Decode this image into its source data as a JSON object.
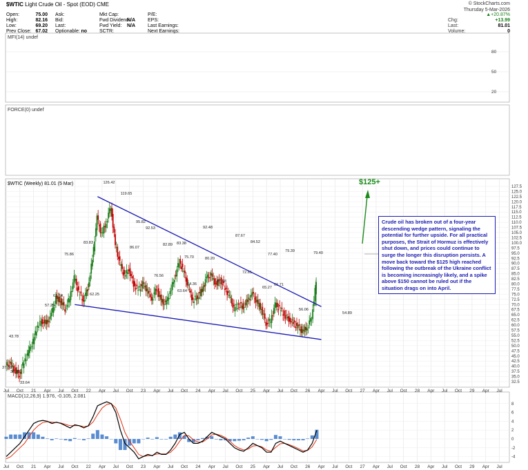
{
  "header": {
    "symbol": "$WTIC",
    "name": "Light Crude Oil - Spot (EOD) CME",
    "watermark": "© StockCharts.com",
    "date": "Thursday 5-Mar-2026",
    "col1": [
      {
        "k": "Open:",
        "v": "75.00"
      },
      {
        "k": "High:",
        "v": "82.16"
      },
      {
        "k": "Low:",
        "v": "69.20"
      },
      {
        "k": "Prev Close:",
        "v": "67.02"
      }
    ],
    "col2": [
      {
        "k": "Ask:",
        "v": ""
      },
      {
        "k": "Bid:",
        "v": ""
      },
      {
        "k": "Last:",
        "v": ""
      },
      {
        "k": "Optionable:",
        "v": "no"
      }
    ],
    "col3": [
      {
        "k": "Mkt Cap:",
        "v": ""
      },
      {
        "k": "Fwd Dividend",
        "v": "N/A"
      },
      {
        "k": "Fwd Yield:",
        "v": "N/A"
      },
      {
        "k": "SCTR:",
        "v": ""
      }
    ],
    "col4": [
      {
        "k": "P/E:",
        "v": ""
      },
      {
        "k": "EPS:",
        "v": ""
      },
      {
        "k": "Last Earnings:",
        "v": ""
      },
      {
        "k": "Next Earnings:",
        "v": ""
      }
    ],
    "quote": {
      "pct": "+20.87%",
      "chg_label": "Chg:",
      "chg": "+13.99",
      "last_label": "Last:",
      "last": "81.01",
      "vol_label": "Volume:",
      "vol": "0"
    }
  },
  "panels": {
    "mfi_label": "MFI(14) undef",
    "mfi_ticks": [
      "80",
      "50",
      "20"
    ],
    "force_label": "FORCE(0) undef",
    "main_label": "$WTIC (Weekly) 81.01 (5 Mar)",
    "macd_label": "MACD(12,26,9) 1.976, -0.105, 2.081",
    "macd_ticks": [
      "8",
      "6",
      "4",
      "2",
      "0",
      "-2",
      "-4"
    ]
  },
  "annotation": {
    "target": "$125+",
    "note": "Crude oil has broken out of a four-year descending wedge pattern, signaling the potential for further upside. For all practical purposes, the Strait of Hormuz is effectively shut down, and prices could continue to surge the longer this disruption persists. A move back toward the $125 high reached following the outbreak of the Ukraine conflict is becoming increasingly likely, and a spike above $150 cannot be ruled out if the situation drags on into April."
  },
  "colors": {
    "up": "#1a7d1a",
    "down": "#c00000",
    "trendline": "#1a1ab0",
    "macd": "#000000",
    "signal": "#e03010",
    "histogram": "#3c78c8",
    "annotation": "#1a8a1a"
  },
  "chart_data": [
    {
      "type": "line",
      "title": "$WTIC (Weekly) 81.01 (5 Mar)",
      "y_ticks": [
        "127.5",
        "125.0",
        "122.5",
        "120.0",
        "117.5",
        "115.0",
        "112.5",
        "110.0",
        "107.5",
        "105.0",
        "102.5",
        "100.0",
        "97.5",
        "95.0",
        "92.5",
        "90.0",
        "87.5",
        "85.0",
        "82.5",
        "80.0",
        "77.5",
        "75.0",
        "72.5",
        "70.0",
        "67.5",
        "65.0",
        "62.5",
        "60.0",
        "57.5",
        "55.0",
        "52.5",
        "50.0",
        "47.5",
        "45.0",
        "42.5",
        "40.0",
        "37.5",
        "35.0",
        "32.5"
      ],
      "x_labels": [
        "Jul",
        "Oct",
        "21",
        "Apr",
        "Jul",
        "Oct",
        "22",
        "Apr",
        "Jul",
        "Oct",
        "23",
        "Apr",
        "Jul",
        "Oct",
        "24",
        "Apr",
        "Jul",
        "Oct",
        "25",
        "Apr",
        "Jul",
        "Oct",
        "26",
        "Apr",
        "Jul",
        "Oct",
        "27",
        "Apr",
        "Jul",
        "Oct",
        "28",
        "Apr",
        "Jul",
        "Oct",
        "29",
        "Apr",
        "Jul"
      ],
      "ylim": [
        32.5,
        127.5
      ],
      "x": [
        "2020-07",
        "2020-08",
        "2020-09",
        "2020-10",
        "2020-11",
        "2020-12",
        "2021-01",
        "2021-02",
        "2021-03",
        "2021-04",
        "2021-05",
        "2021-06",
        "2021-07",
        "2021-08",
        "2021-09",
        "2021-10",
        "2021-11",
        "2021-12",
        "2022-01",
        "2022-02",
        "2022-03",
        "2022-04",
        "2022-05",
        "2022-06",
        "2022-07",
        "2022-08",
        "2022-09",
        "2022-10",
        "2022-11",
        "2022-12",
        "2023-01",
        "2023-02",
        "2023-03",
        "2023-04",
        "2023-05",
        "2023-06",
        "2023-07",
        "2023-08",
        "2023-09",
        "2023-10",
        "2023-11",
        "2023-12",
        "2024-01",
        "2024-02",
        "2024-03",
        "2024-04",
        "2024-05",
        "2024-06",
        "2024-07",
        "2024-08",
        "2024-09",
        "2024-10",
        "2024-11",
        "2024-12",
        "2025-01",
        "2025-02",
        "2025-03",
        "2025-04",
        "2025-05",
        "2025-06",
        "2025-07",
        "2025-08",
        "2025-09",
        "2025-10",
        "2025-11",
        "2025-12",
        "2026-01",
        "2026-02",
        "2026-03"
      ],
      "values": [
        40.5,
        41,
        38,
        36,
        42,
        47,
        52,
        60,
        62,
        61,
        65,
        73,
        72,
        68,
        73,
        83,
        76,
        72,
        78,
        92,
        112,
        104,
        110,
        118,
        99,
        90,
        84,
        87,
        80,
        77,
        80,
        77,
        73,
        78,
        72,
        70,
        76,
        83,
        91,
        86,
        78,
        72,
        74,
        77,
        83,
        84,
        80,
        82,
        78,
        74,
        68,
        70,
        69,
        72,
        75,
        71,
        68,
        61,
        62,
        70,
        68,
        65,
        63,
        61,
        59,
        57,
        59,
        64,
        81.01
      ],
      "price_labels": [
        "37.50",
        "36.13",
        "33.64",
        "43.78",
        "57.25",
        "75.86",
        "61.74",
        "83.83",
        "62.25",
        "126.42",
        "119.65",
        "95.82",
        "86.07",
        "92.53",
        "76.56",
        "82.89",
        "63.64",
        "83.38",
        "75.70",
        "64.36",
        "92.48",
        "80.20",
        "67.18",
        "87.67",
        "84.52",
        "72.61",
        "77.40",
        "65.27",
        "66.71",
        "79.39",
        "79.40",
        "56.06",
        "54.89"
      ],
      "upper_trendline": [
        [
          "2022-03",
          122.5
        ],
        [
          "2026-04",
          69
        ]
      ],
      "lower_trendline": [
        [
          "2021-10",
          70
        ],
        [
          "2026-04",
          53
        ]
      ]
    },
    {
      "type": "line",
      "title": "MACD(12,26,9) 1.976, -0.105, 2.081",
      "ylim": [
        -5,
        10
      ],
      "series": [
        {
          "name": "MACD",
          "values": [
            -4,
            -3,
            -2,
            -1,
            0.5,
            2,
            3.5,
            4,
            4.2,
            4,
            3.5,
            3.8,
            3.5,
            3,
            2.5,
            3.2,
            3,
            2.5,
            3,
            5,
            7.5,
            8,
            8.4,
            8,
            6,
            2,
            -1,
            -2,
            -3,
            -4.5,
            -4,
            -3.5,
            -3.8,
            -3,
            -3.5,
            -3.5,
            -2.5,
            -1,
            1,
            1.5,
            0,
            -1,
            -1,
            -0.5,
            0.5,
            1.5,
            1,
            0.5,
            0,
            -1,
            -2,
            -2.5,
            -2.8,
            -2,
            -1,
            -1.5,
            -2,
            -3,
            -3,
            -1,
            -0.5,
            -1,
            -1.5,
            -2,
            -2.5,
            -3,
            -2.5,
            -1,
            1.976
          ]
        },
        {
          "name": "Signal",
          "values": [
            -4.5,
            -4,
            -3,
            -2,
            -1,
            0.5,
            2,
            3,
            3.7,
            3.9,
            3.8,
            3.7,
            3.6,
            3.3,
            3,
            3,
            3,
            2.8,
            2.9,
            3.8,
            5.5,
            7,
            7.8,
            8,
            7,
            4.5,
            1.5,
            -0.5,
            -2,
            -3.5,
            -4,
            -3.8,
            -3.7,
            -3.4,
            -3.4,
            -3.4,
            -3,
            -2,
            -0.5,
            0.8,
            0.7,
            -0.2,
            -0.7,
            -0.7,
            0,
            0.9,
            1.1,
            0.8,
            0.3,
            -0.5,
            -1.5,
            -2.1,
            -2.5,
            -2.3,
            -1.6,
            -1.5,
            -1.8,
            -2.5,
            -2.8,
            -1.9,
            -1.1,
            -1,
            -1.3,
            -1.7,
            -2.2,
            -2.7,
            -2.6,
            -1.8,
            -0.105
          ]
        }
      ]
    }
  ]
}
